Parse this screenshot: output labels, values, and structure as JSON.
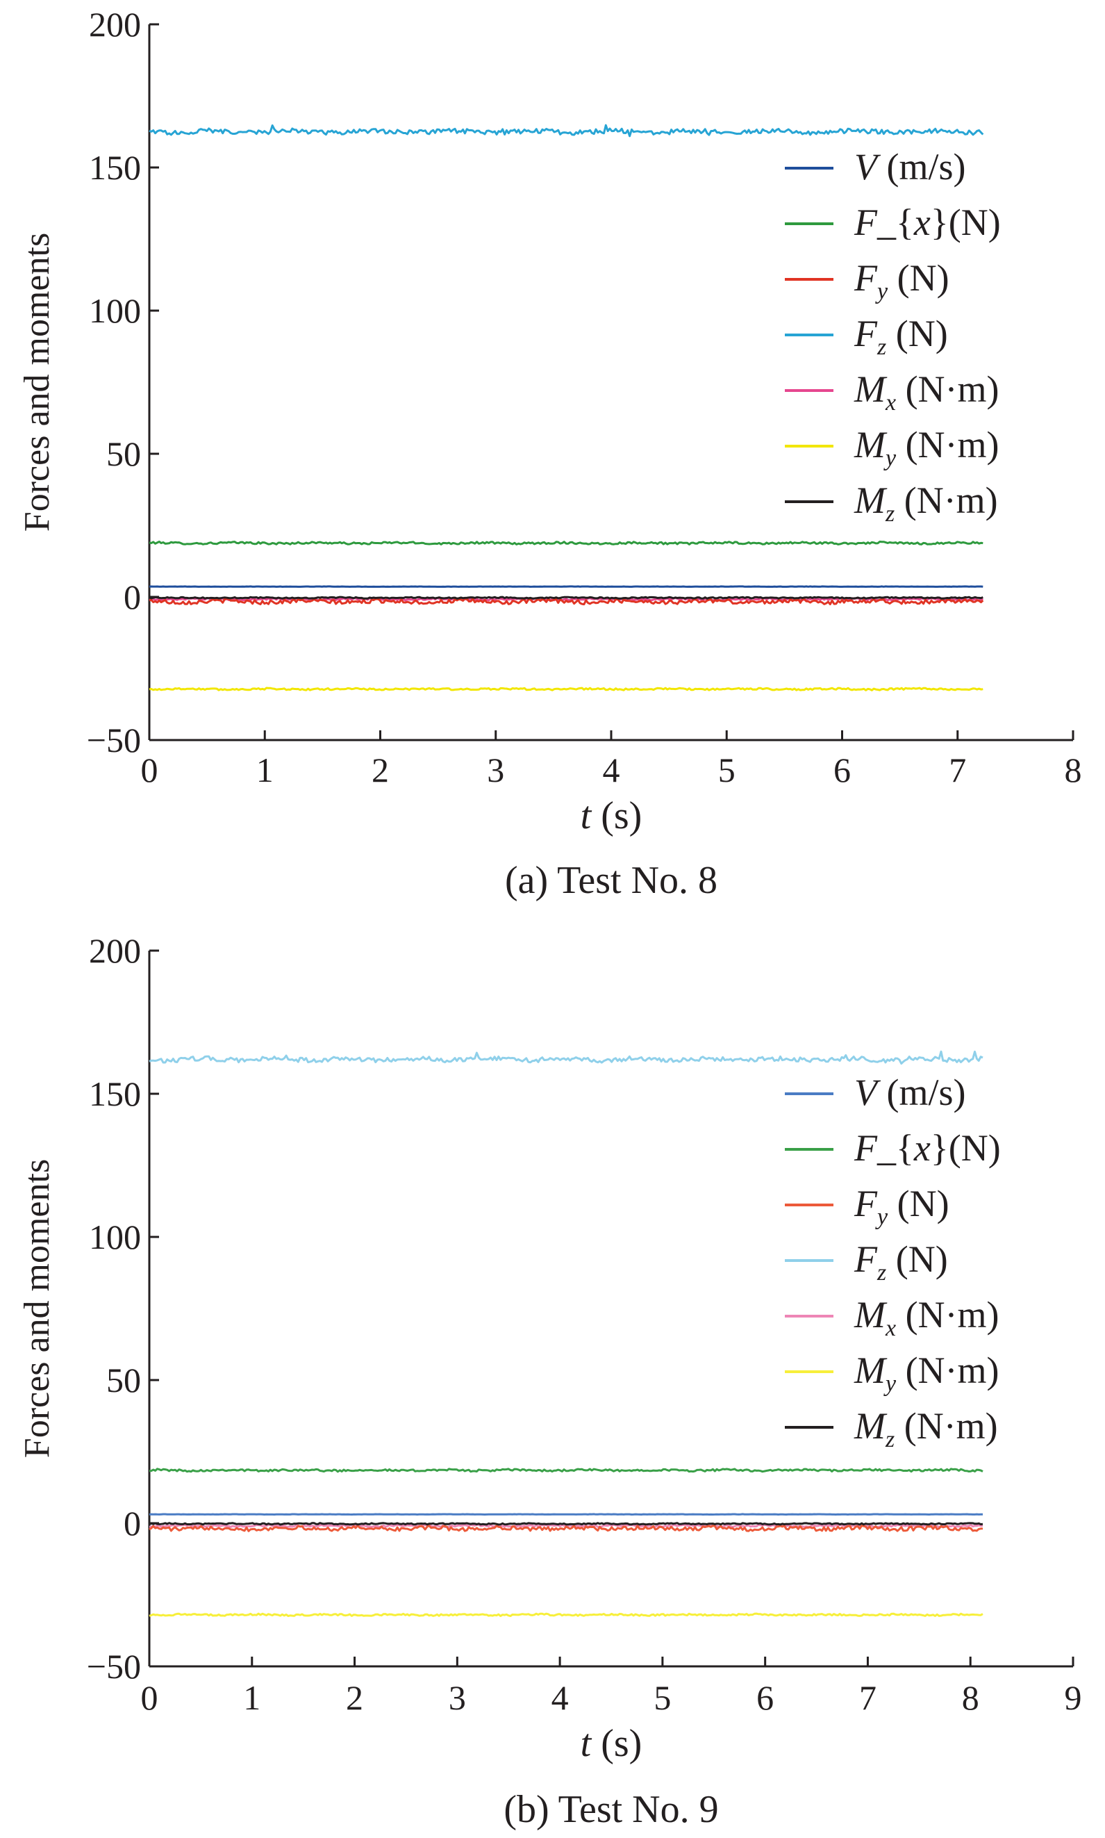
{
  "chart_data": [
    {
      "type": "line",
      "caption": "(a) Test No. 8",
      "xlabel_var": "t",
      "xlabel_unit": " (s)",
      "ylabel": "Forces and moments",
      "xlim": [
        0,
        8
      ],
      "ylim": [
        -50,
        200
      ],
      "xticks": [
        0,
        1,
        2,
        3,
        4,
        5,
        6,
        7,
        8
      ],
      "yticks": [
        -50,
        0,
        50,
        100,
        150,
        200
      ],
      "ytick_labels": [
        "−50",
        "0",
        "50",
        "100",
        "150",
        "200"
      ],
      "x_end": 7.22,
      "legend_position": "right",
      "series": [
        {
          "name": "V (m/s)",
          "legend": {
            "v": "V",
            "s": "",
            "u": " (m/s)"
          },
          "color": "#1f4e9c",
          "value": 3.6,
          "noise": 0.05
        },
        {
          "name": "F_{x}(N)",
          "legend": {
            "v": "F",
            "s": "",
            "u": "_{x}(N)",
            "x_italic": true
          },
          "color": "#2e9a3e",
          "value": 18.8,
          "noise": 0.35
        },
        {
          "name": "Fy (N)",
          "legend": {
            "v": "F",
            "s": "y",
            "u": " (N)"
          },
          "color": "#e03424",
          "value": -1.6,
          "noise": 0.7
        },
        {
          "name": "Fz (N)",
          "legend": {
            "v": "F",
            "s": "z",
            "u": " (N)"
          },
          "color": "#27a4d4",
          "value": 162.5,
          "noise": 0.8
        },
        {
          "name": "Mx (N·m)",
          "legend": {
            "v": "M",
            "s": "x",
            "u": " (N·m)"
          },
          "color": "#e6478f",
          "value": -0.8,
          "noise": 0.3
        },
        {
          "name": "My (N·m)",
          "legend": {
            "v": "M",
            "s": "y",
            "u": " (N·m)"
          },
          "color": "#f2e600",
          "value": -32.2,
          "noise": 0.3
        },
        {
          "name": "Mz (N·m)",
          "legend": {
            "v": "M",
            "s": "z",
            "u": " (N·m)"
          },
          "color": "#231f20",
          "value": -0.3,
          "noise": 0.2
        }
      ]
    },
    {
      "type": "line",
      "caption": "(b) Test No. 9",
      "xlabel_var": "t",
      "xlabel_unit": " (s)",
      "ylabel": "Forces and moments",
      "xlim": [
        0,
        9
      ],
      "ylim": [
        -50,
        200
      ],
      "xticks": [
        0,
        1,
        2,
        3,
        4,
        5,
        6,
        7,
        8,
        9
      ],
      "yticks": [
        -50,
        0,
        50,
        100,
        150,
        200
      ],
      "ytick_labels": [
        "−50",
        "0",
        "50",
        "100",
        "150",
        "200"
      ],
      "x_end": 8.12,
      "legend_position": "right",
      "series": [
        {
          "name": "V (m/s)",
          "legend": {
            "v": "V",
            "s": "",
            "u": " (m/s)"
          },
          "color": "#4a7cc4",
          "value": 3.1,
          "noise": 0.05
        },
        {
          "name": "F_{x}(N)",
          "legend": {
            "v": "F",
            "s": "",
            "u": "_{x}(N)",
            "x_italic": true
          },
          "color": "#3aa048",
          "value": 18.5,
          "noise": 0.35
        },
        {
          "name": "Fy (N)",
          "legend": {
            "v": "F",
            "s": "y",
            "u": " (N)"
          },
          "color": "#ec5a3a",
          "value": -1.8,
          "noise": 0.7
        },
        {
          "name": "Fz (N)",
          "legend": {
            "v": "F",
            "s": "z",
            "u": " (N)"
          },
          "color": "#8fd0ea",
          "value": 162.0,
          "noise": 0.8
        },
        {
          "name": "Mx (N·m)",
          "legend": {
            "v": "M",
            "s": "x",
            "u": " (N·m)"
          },
          "color": "#ee86b6",
          "value": -0.9,
          "noise": 0.3
        },
        {
          "name": "My (N·m)",
          "legend": {
            "v": "M",
            "s": "y",
            "u": " (N·m)"
          },
          "color": "#f7ef3a",
          "value": -32.0,
          "noise": 0.3
        },
        {
          "name": "Mz (N·m)",
          "legend": {
            "v": "M",
            "s": "z",
            "u": " (N·m)"
          },
          "color": "#231f20",
          "value": -0.2,
          "noise": 0.2
        }
      ]
    }
  ]
}
